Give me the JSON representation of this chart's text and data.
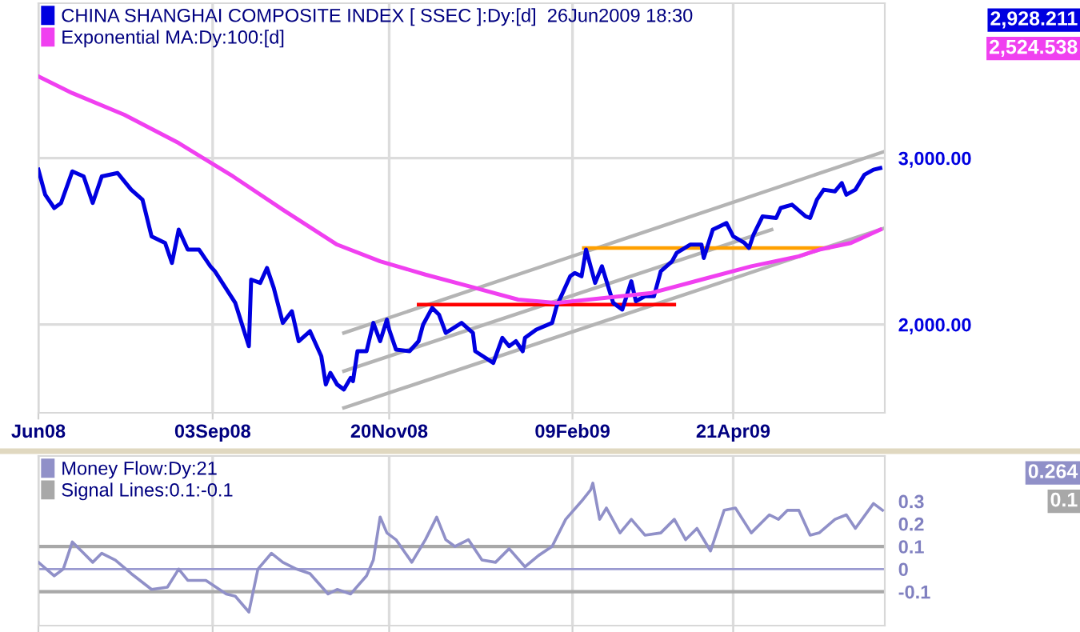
{
  "chart_data": [
    {
      "type": "line",
      "legend": "top left",
      "grid": true,
      "xlim": [
        "2008-06-18",
        "2009-06-27"
      ],
      "xticks": [
        {
          "value": "2008-06-18",
          "label": "Jun08"
        },
        {
          "value": "2008-09-03",
          "label": "03Sep08"
        },
        {
          "value": "2008-11-20",
          "label": "20Nov08"
        },
        {
          "value": "2009-02-09",
          "label": "09Feb09"
        },
        {
          "value": "2009-04-21",
          "label": "21Apr09"
        }
      ],
      "ylim": [
        1470,
        3930
      ],
      "yticks": [
        {
          "value": 2000,
          "label": "2,000.00"
        },
        {
          "value": 3000,
          "label": "3,000.00"
        }
      ],
      "series": [
        {
          "name": "CHINA SHANGHAI COMPOSITE INDEX [ SSEC ]:Dy:[d]  26Jun2009 18:30",
          "color": "#0000e0",
          "x": [
            "2008-06-18",
            "2008-06-21",
            "2008-06-25",
            "2008-06-28",
            "2008-07-03",
            "2008-07-08",
            "2008-07-12",
            "2008-07-16",
            "2008-07-23",
            "2008-07-29",
            "2008-08-03",
            "2008-08-07",
            "2008-08-13",
            "2008-08-16",
            "2008-08-19",
            "2008-08-23",
            "2008-08-28",
            "2008-09-02",
            "2008-09-04",
            "2008-09-13",
            "2008-09-19",
            "2008-09-20",
            "2008-09-24",
            "2008-09-27",
            "2008-09-30",
            "2008-10-04",
            "2008-10-08",
            "2008-10-11",
            "2008-10-16",
            "2008-10-21",
            "2008-10-23",
            "2008-10-25",
            "2008-10-28",
            "2008-10-31",
            "2008-11-03",
            "2008-11-04",
            "2008-11-06",
            "2008-11-10",
            "2008-11-13",
            "2008-11-16",
            "2008-11-19",
            "2008-11-20",
            "2008-11-23",
            "2008-11-29",
            "2008-12-03",
            "2008-12-05",
            "2008-12-09",
            "2008-12-12",
            "2008-12-15",
            "2008-12-22",
            "2008-12-27",
            "2008-12-28",
            "2009-01-05",
            "2009-01-09",
            "2009-01-12",
            "2009-01-15",
            "2009-01-18",
            "2009-01-19",
            "2009-01-24",
            "2009-01-31",
            "2009-02-02",
            "2009-02-08",
            "2009-02-10",
            "2009-02-13",
            "2009-02-15",
            "2009-02-19",
            "2009-02-22",
            "2009-02-27",
            "2009-03-03",
            "2009-03-07",
            "2009-03-09",
            "2009-03-13",
            "2009-03-17",
            "2009-03-20",
            "2009-03-25",
            "2009-03-27",
            "2009-04-02",
            "2009-04-07",
            "2009-04-08",
            "2009-04-12",
            "2009-04-15",
            "2009-04-18",
            "2009-04-21",
            "2009-04-26",
            "2009-04-28",
            "2009-04-30",
            "2009-05-04",
            "2009-05-10",
            "2009-05-12",
            "2009-05-17",
            "2009-05-23",
            "2009-05-25",
            "2009-05-28",
            "2009-05-31",
            "2009-06-05",
            "2009-06-08",
            "2009-06-10",
            "2009-06-14",
            "2009-06-18",
            "2009-06-22",
            "2009-06-25"
          ],
          "values": [
            2930,
            2780,
            2700,
            2730,
            2920,
            2890,
            2730,
            2890,
            2910,
            2810,
            2750,
            2530,
            2490,
            2370,
            2570,
            2450,
            2450,
            2350,
            2320,
            2130,
            1870,
            2270,
            2250,
            2340,
            2220,
            2010,
            2080,
            1900,
            1960,
            1810,
            1640,
            1710,
            1640,
            1610,
            1680,
            1660,
            1840,
            1840,
            2010,
            1900,
            2030,
            1970,
            1850,
            1840,
            1900,
            2000,
            2100,
            2060,
            1950,
            2010,
            1950,
            1840,
            1770,
            1920,
            1870,
            1900,
            1840,
            1920,
            1970,
            2010,
            2110,
            2290,
            2310,
            2290,
            2450,
            2250,
            2350,
            2130,
            2090,
            2260,
            2140,
            2170,
            2170,
            2320,
            2380,
            2430,
            2480,
            2480,
            2400,
            2570,
            2590,
            2610,
            2530,
            2490,
            2460,
            2540,
            2650,
            2640,
            2700,
            2720,
            2650,
            2640,
            2750,
            2810,
            2800,
            2850,
            2780,
            2810,
            2900,
            2930,
            2940
          ]
        },
        {
          "name": "Exponential MA:Dy:100:[d]",
          "color": "#f040f0",
          "x": [
            "2008-06-18",
            "2008-07-03",
            "2008-07-26",
            "2008-08-19",
            "2008-09-12",
            "2008-10-04",
            "2008-10-28",
            "2008-11-16",
            "2008-12-06",
            "2008-12-28",
            "2009-01-16",
            "2009-02-02",
            "2009-02-23",
            "2009-03-16",
            "2009-04-07",
            "2009-04-29",
            "2009-05-20",
            "2009-05-29",
            "2009-06-12",
            "2009-06-25"
          ],
          "values": [
            3490,
            3390,
            3260,
            3090,
            2890,
            2690,
            2480,
            2380,
            2300,
            2220,
            2150,
            2130,
            2160,
            2190,
            2270,
            2350,
            2410,
            2450,
            2490,
            2570
          ]
        },
        {
          "color": "#b4b4b4",
          "x": [
            "2008-10-31",
            "2009-06-27"
          ],
          "values": [
            1950,
            3040
          ]
        },
        {
          "color": "#b4b4b4",
          "x": [
            "2008-10-31",
            "2009-05-08"
          ],
          "values": [
            1720,
            2570
          ]
        },
        {
          "color": "#b4b4b4",
          "x": [
            "2008-10-31",
            "2009-06-27"
          ],
          "values": [
            1500,
            2580
          ]
        },
        {
          "color": "#ff0000",
          "x": [
            "2008-12-03",
            "2009-03-26"
          ],
          "values": [
            2120,
            2120
          ]
        },
        {
          "color": "#ffa000",
          "x": [
            "2009-02-14",
            "2009-06-02"
          ],
          "values": [
            2460,
            2460
          ]
        }
      ],
      "annotations": [
        "2,928.211",
        "2,524.538"
      ]
    },
    {
      "type": "line",
      "legend": "top left",
      "grid": "x",
      "tick_labels": "y",
      "xlim": [
        "2008-06-18",
        "2009-06-27"
      ],
      "xticks": [
        {
          "value": "2008-06-18",
          "label": null
        },
        {
          "value": "2008-09-03",
          "label": null
        },
        {
          "value": "2008-11-20",
          "label": null
        },
        {
          "value": "2009-02-09",
          "label": null
        },
        {
          "value": "2009-04-21",
          "label": null
        }
      ],
      "ylim": [
        -0.25,
        0.5
      ],
      "yticks": [
        -0.1,
        0,
        0.1,
        0.2,
        0.3
      ],
      "series": [
        {
          "name": "Money Flow:Dy:21",
          "color": "#9090c8",
          "x": [
            "2008-06-18",
            "2008-06-25",
            "2008-06-29",
            "2008-07-03",
            "2008-07-08",
            "2008-07-12",
            "2008-07-16",
            "2008-07-22",
            "2008-07-29",
            "2008-08-07",
            "2008-08-14",
            "2008-08-19",
            "2008-08-23",
            "2008-08-31",
            "2008-09-09",
            "2008-09-13",
            "2008-09-19",
            "2008-09-23",
            "2008-09-29",
            "2008-10-04",
            "2008-10-10",
            "2008-10-16",
            "2008-10-24",
            "2008-10-28",
            "2008-11-03",
            "2008-11-10",
            "2008-11-13",
            "2008-11-16",
            "2008-11-19",
            "2008-11-23",
            "2008-11-30",
            "2008-12-06",
            "2008-12-11",
            "2008-12-15",
            "2008-12-19",
            "2008-12-25",
            "2008-12-31",
            "2009-01-06",
            "2009-01-12",
            "2009-01-19",
            "2009-01-25",
            "2009-01-31",
            "2009-02-06",
            "2009-02-13",
            "2009-02-17",
            "2009-02-18",
            "2009-02-21",
            "2009-02-24",
            "2009-03-02",
            "2009-03-07",
            "2009-03-13",
            "2009-03-20",
            "2009-03-26",
            "2009-03-31",
            "2009-04-05",
            "2009-04-11",
            "2009-04-17",
            "2009-04-22",
            "2009-04-29",
            "2009-05-07",
            "2009-05-11",
            "2009-05-15",
            "2009-05-20",
            "2009-05-25",
            "2009-05-29",
            "2009-06-05",
            "2009-06-10",
            "2009-06-14",
            "2009-06-22",
            "2009-06-26"
          ],
          "values": [
            0.03,
            -0.03,
            0.0,
            0.12,
            0.07,
            0.03,
            0.07,
            0.04,
            -0.02,
            -0.09,
            -0.08,
            0.0,
            -0.05,
            -0.05,
            -0.11,
            -0.12,
            -0.19,
            0.0,
            0.07,
            0.03,
            0.0,
            -0.02,
            -0.11,
            -0.09,
            -0.11,
            -0.03,
            0.04,
            0.23,
            0.16,
            0.13,
            0.03,
            0.13,
            0.23,
            0.13,
            0.1,
            0.13,
            0.04,
            0.03,
            0.09,
            0.01,
            0.06,
            0.1,
            0.22,
            0.3,
            0.35,
            0.38,
            0.22,
            0.27,
            0.16,
            0.22,
            0.15,
            0.16,
            0.22,
            0.13,
            0.18,
            0.08,
            0.26,
            0.27,
            0.16,
            0.24,
            0.22,
            0.26,
            0.26,
            0.15,
            0.16,
            0.22,
            0.24,
            0.18,
            0.29,
            0.26
          ]
        }
      ],
      "ref_lines": [
        {
          "axis": "y",
          "value": 0.1,
          "label": "Signal Lines:0.1:-0.1",
          "color": "#a8a8a8"
        },
        {
          "axis": "y",
          "value": -0.1,
          "color": "#a8a8a8"
        },
        {
          "axis": "y",
          "value": 0,
          "color": "#9a9ad0"
        }
      ],
      "annotations": [
        "0.264",
        "0.1"
      ]
    }
  ]
}
